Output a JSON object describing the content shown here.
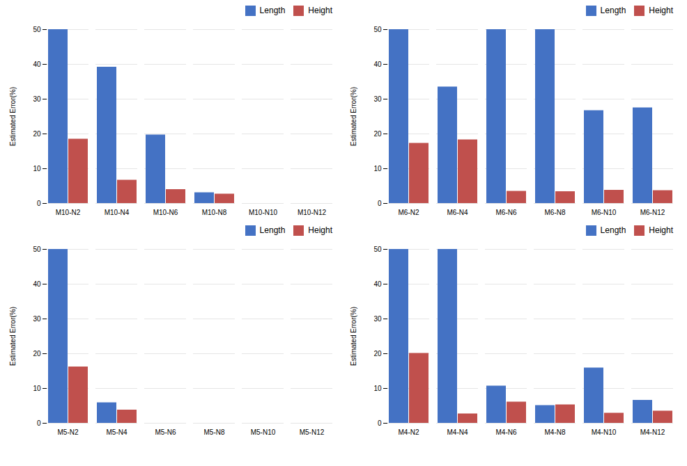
{
  "chart_data": [
    {
      "type": "bar",
      "categories": [
        "M10-N2",
        "M10-N4",
        "M10-N6",
        "M10-N8",
        "M10-N10",
        "M10-N12"
      ],
      "series": [
        {
          "name": "Length",
          "color": "#4472C4",
          "values": [
            50,
            39.2,
            19.7,
            3.1,
            0,
            0
          ]
        },
        {
          "name": "Height",
          "color": "#C0504D",
          "values": [
            18.5,
            6.7,
            4.0,
            2.7,
            0,
            0
          ]
        }
      ],
      "ylabel": "Estimated Error(%)",
      "ylim": [
        0,
        50
      ],
      "yticks": [
        0,
        10,
        20,
        30,
        40,
        50
      ],
      "grid": true,
      "legend": "upper right"
    },
    {
      "type": "bar",
      "categories": [
        "M6-N2",
        "M6-N4",
        "M6-N6",
        "M6-N8",
        "M6-N10",
        "M6-N12"
      ],
      "series": [
        {
          "name": "Length",
          "color": "#4472C4",
          "values": [
            50,
            33.5,
            50,
            50,
            26.7,
            27.5
          ]
        },
        {
          "name": "Height",
          "color": "#C0504D",
          "values": [
            17.3,
            18.3,
            3.5,
            3.4,
            3.8,
            3.7
          ]
        }
      ],
      "ylabel": "Estimated Error(%)",
      "ylim": [
        0,
        50
      ],
      "yticks": [
        0,
        10,
        20,
        30,
        40,
        50
      ],
      "grid": true,
      "legend": "upper right"
    },
    {
      "type": "bar",
      "categories": [
        "M5-N2",
        "M5-N4",
        "M5-N6",
        "M5-N8",
        "M5-N10",
        "M5-N12"
      ],
      "series": [
        {
          "name": "Length",
          "color": "#4472C4",
          "values": [
            50,
            5.9,
            0,
            0,
            0,
            0
          ]
        },
        {
          "name": "Height",
          "color": "#C0504D",
          "values": [
            16.2,
            3.8,
            0,
            0,
            0,
            0
          ]
        }
      ],
      "ylabel": "Estimated Error(%)",
      "ylim": [
        0,
        50
      ],
      "yticks": [
        0,
        10,
        20,
        30,
        40,
        50
      ],
      "grid": true,
      "legend": "upper right"
    },
    {
      "type": "bar",
      "categories": [
        "M4-N2",
        "M4-N4",
        "M4-N6",
        "M4-N8",
        "M4-N10",
        "M4-N12"
      ],
      "series": [
        {
          "name": "Length",
          "color": "#4472C4",
          "values": [
            50,
            50,
            10.7,
            5.1,
            15.9,
            6.6
          ]
        },
        {
          "name": "Height",
          "color": "#C0504D",
          "values": [
            20.1,
            2.7,
            6.1,
            5.3,
            2.9,
            3.5
          ]
        }
      ],
      "ylabel": "Estimated Error(%)",
      "ylim": [
        0,
        50
      ],
      "yticks": [
        0,
        10,
        20,
        30,
        40,
        50
      ],
      "grid": true,
      "legend": "upper right"
    }
  ]
}
